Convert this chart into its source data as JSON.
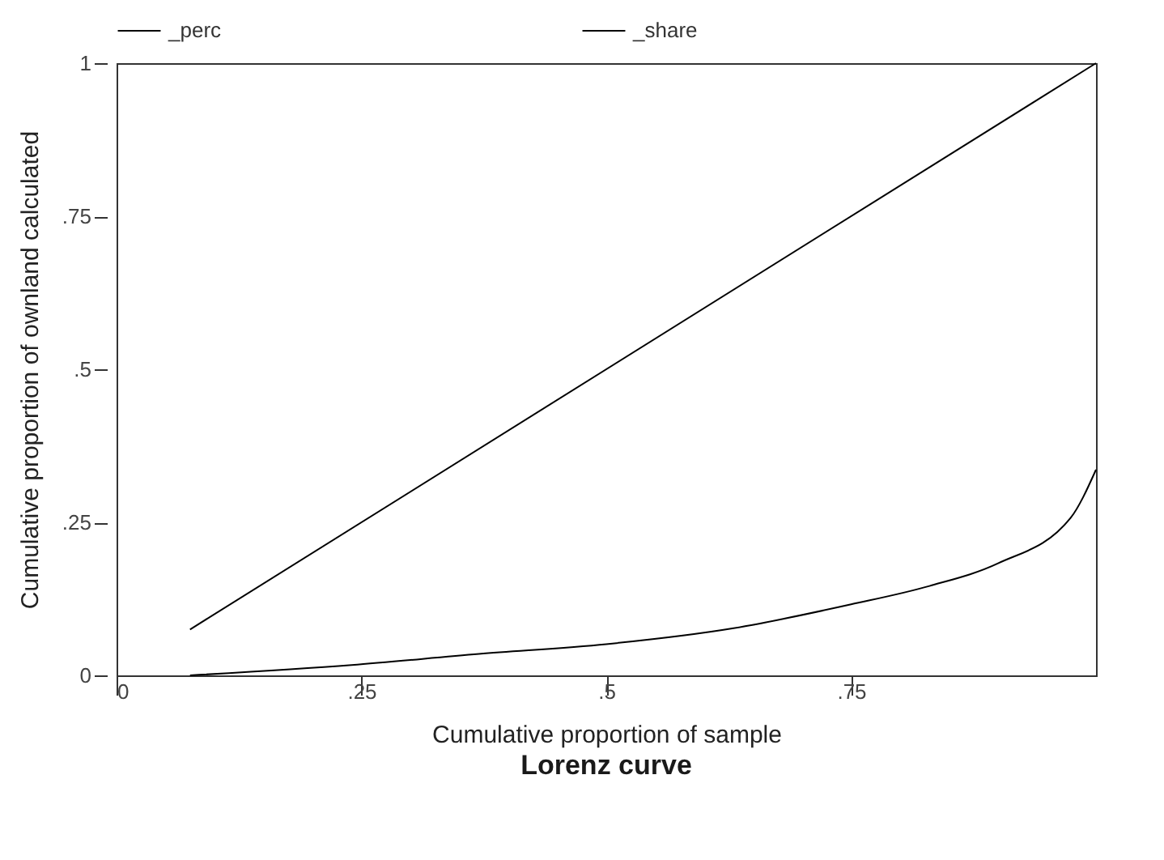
{
  "chart_data": {
    "type": "line",
    "title": "Lorenz curve",
    "xlabel": "Cumulative proportion of sample",
    "ylabel": "Cumulative proportion of ownland calculated",
    "xlim": [
      0,
      1
    ],
    "ylim": [
      0,
      1
    ],
    "xticks": [
      0,
      {
        "value": 0.25,
        "label": ".25"
      },
      {
        "value": 0.5,
        "label": ".5"
      },
      {
        "value": 0.75,
        "label": ".75"
      }
    ],
    "yticks": [
      0,
      {
        "value": 0.25,
        "label": ".25"
      },
      {
        "value": 0.5,
        "label": ".5"
      },
      {
        "value": 0.75,
        "label": ".75"
      },
      1
    ],
    "grid": false,
    "legend": "top",
    "marker": "none",
    "line_style": "solid",
    "series": [
      {
        "name": "_perc",
        "color": "#000000",
        "x": [
          0.075,
          1
        ],
        "values": [
          0.075,
          1
        ]
      },
      {
        "name": "_share",
        "color": "#000000",
        "x": [
          0.075,
          0.24,
          0.37,
          0.5,
          0.63,
          0.75,
          0.83,
          0.9,
          0.974,
          1
        ],
        "values": [
          0,
          0.017,
          0.035,
          0.051,
          0.077,
          0.116,
          0.146,
          0.183,
          0.257,
          0.336
        ]
      }
    ]
  }
}
